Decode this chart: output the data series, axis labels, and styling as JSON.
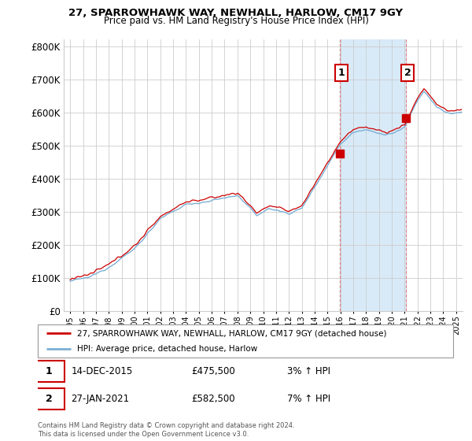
{
  "title": "27, SPARROWHAWK WAY, NEWHALL, HARLOW, CM17 9GY",
  "subtitle": "Price paid vs. HM Land Registry's House Price Index (HPI)",
  "legend_line1": "27, SPARROWHAWK WAY, NEWHALL, HARLOW, CM17 9GY (detached house)",
  "legend_line2": "HPI: Average price, detached house, Harlow",
  "annotation1_label": "1",
  "annotation1_date": "14-DEC-2015",
  "annotation1_price": "£475,500",
  "annotation1_hpi": "3% ↑ HPI",
  "annotation1_year": 2015.95,
  "annotation1_value": 475500,
  "annotation2_label": "2",
  "annotation2_date": "27-JAN-2021",
  "annotation2_price": "£582,500",
  "annotation2_hpi": "7% ↑ HPI",
  "annotation2_year": 2021.08,
  "annotation2_value": 582500,
  "hpi_color": "#7bafd4",
  "price_color": "#cc0000",
  "vline_color": "#e08080",
  "shade_color": "#d8eaf8",
  "footer": "Contains HM Land Registry data © Crown copyright and database right 2024.\nThis data is licensed under the Open Government Licence v3.0.",
  "ylim": [
    0,
    820000
  ],
  "yticks": [
    0,
    100000,
    200000,
    300000,
    400000,
    500000,
    600000,
    700000,
    800000
  ],
  "ytick_labels": [
    "£0",
    "£100K",
    "£200K",
    "£300K",
    "£400K",
    "£500K",
    "£600K",
    "£700K",
    "£800K"
  ],
  "xlim_start": 1994.5,
  "xlim_end": 2025.5,
  "grid_color": "#cccccc",
  "title_fontsize": 9.5,
  "subtitle_fontsize": 8.5
}
